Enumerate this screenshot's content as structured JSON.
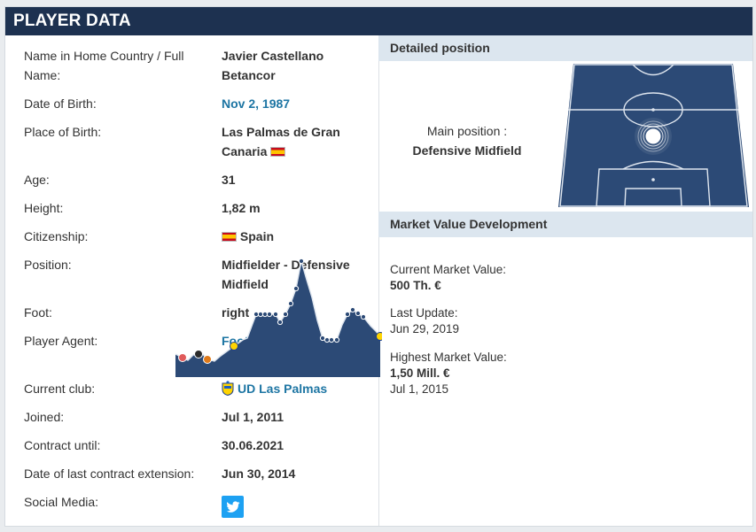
{
  "header": {
    "title": "PLAYER DATA"
  },
  "player_rows": [
    {
      "label": "Name in Home Country / Full Name:",
      "value": "Javier Castellano Betancor"
    },
    {
      "label": "Date of Birth:",
      "value": "Nov 2, 1987"
    },
    {
      "label": "Place of Birth:",
      "value": "Las Palmas de Gran Canaria"
    },
    {
      "label": "Age:",
      "value": "31"
    },
    {
      "label": "Height:",
      "value": "1,82 m"
    },
    {
      "label": "Citizenship:",
      "value": "Spain"
    },
    {
      "label": "Position:",
      "value": "Midfielder - Defensive Midfield"
    },
    {
      "label": "Foot:",
      "value": "right"
    },
    {
      "label": "Player Agent:",
      "value": "Football Promotions (Scotland) Ltd."
    },
    {
      "label": "Current club:",
      "value": "UD Las Palmas"
    },
    {
      "label": "Joined:",
      "value": "Jul 1, 2011"
    },
    {
      "label": "Contract until:",
      "value": "30.06.2021"
    },
    {
      "label": "Date of last contract extension:",
      "value": "Jun 30, 2014"
    },
    {
      "label": "Social Media:",
      "value": ""
    }
  ],
  "icons": {
    "flag": "spain-flag-icon",
    "club": "ud-las-palmas-crest-icon",
    "social": "twitter-icon"
  },
  "detailed_position": {
    "title": "Detailed position",
    "main_label": "Main position :",
    "main_value": "Defensive Midfield"
  },
  "market_value": {
    "title": "Market Value Development",
    "current_label": "Current Market Value:",
    "current_value": "500 Th. €",
    "update_label": "Last Update:",
    "update_value": "Jun 29, 2019",
    "highest_label": "Highest Market Value:",
    "highest_value": "1,50 Mill. €",
    "highest_date": "Jul 1, 2015"
  },
  "colors": {
    "header_bg": "#1d3150",
    "link": "#1d75a3",
    "pitch": "#2c4a76",
    "subheader_bg": "#dce6ef"
  }
}
